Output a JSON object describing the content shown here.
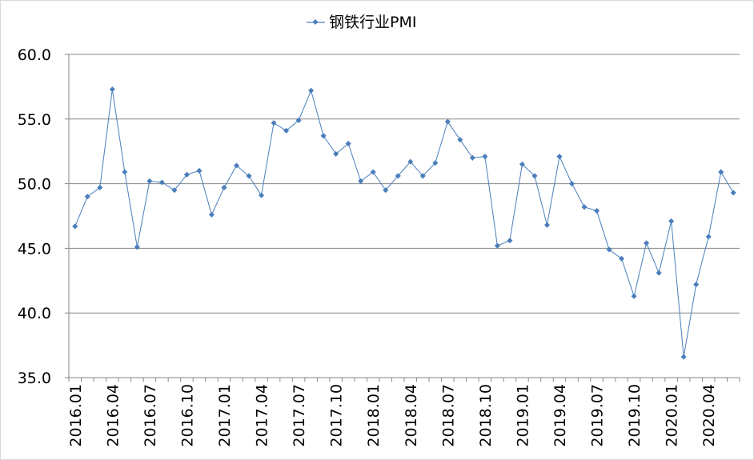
{
  "chart_data": {
    "type": "line",
    "title": "",
    "legend": {
      "position": "top",
      "entries": [
        "钢铁行业PMI"
      ]
    },
    "xlabel": "",
    "ylabel": "",
    "ylim": [
      35,
      60
    ],
    "yticks": [
      "35.0",
      "40.0",
      "45.0",
      "50.0",
      "55.0",
      "60.0"
    ],
    "grid": "horizontal",
    "series_color": "#4a7ebb",
    "x": [
      "2016.01",
      "2016.02",
      "2016.03",
      "2016.04",
      "2016.05",
      "2016.06",
      "2016.07",
      "2016.08",
      "2016.09",
      "2016.10",
      "2016.11",
      "2016.12",
      "2017.01",
      "2017.02",
      "2017.03",
      "2017.04",
      "2017.05",
      "2017.06",
      "2017.07",
      "2017.08",
      "2017.09",
      "2017.10",
      "2017.11",
      "2017.12",
      "2018.01",
      "2018.02",
      "2018.03",
      "2018.04",
      "2018.05",
      "2018.06",
      "2018.07",
      "2018.08",
      "2018.09",
      "2018.10",
      "2018.11",
      "2018.12",
      "2019.01",
      "2019.02",
      "2019.03",
      "2019.04",
      "2019.05",
      "2019.06",
      "2019.07",
      "2019.08",
      "2019.09",
      "2019.10",
      "2019.11",
      "2019.12",
      "2020.01",
      "2020.02",
      "2020.03",
      "2020.04",
      "2020.05",
      "2020.06"
    ],
    "xtick_labels": [
      "2016.01",
      "2016.04",
      "2016.07",
      "2016.10",
      "2017.01",
      "2017.04",
      "2017.07",
      "2017.10",
      "2018.01",
      "2018.04",
      "2018.07",
      "2018.10",
      "2019.01",
      "2019.04",
      "2019.07",
      "2019.10",
      "2020.01",
      "2020.04"
    ],
    "series": [
      {
        "name": "钢铁行业PMI",
        "values": [
          46.7,
          49.0,
          49.7,
          57.3,
          50.9,
          45.1,
          50.2,
          50.1,
          49.5,
          50.7,
          51.0,
          47.6,
          49.7,
          51.4,
          50.6,
          49.1,
          54.7,
          54.1,
          54.9,
          57.2,
          53.7,
          52.3,
          53.1,
          50.2,
          50.9,
          49.5,
          50.6,
          51.7,
          50.6,
          51.6,
          54.8,
          53.4,
          52.0,
          52.1,
          45.2,
          45.6,
          51.5,
          50.6,
          46.8,
          52.1,
          50.0,
          48.2,
          47.9,
          44.9,
          44.2,
          41.3,
          45.4,
          43.1,
          47.1,
          36.6,
          42.2,
          45.9,
          50.9,
          49.3
        ]
      }
    ]
  }
}
